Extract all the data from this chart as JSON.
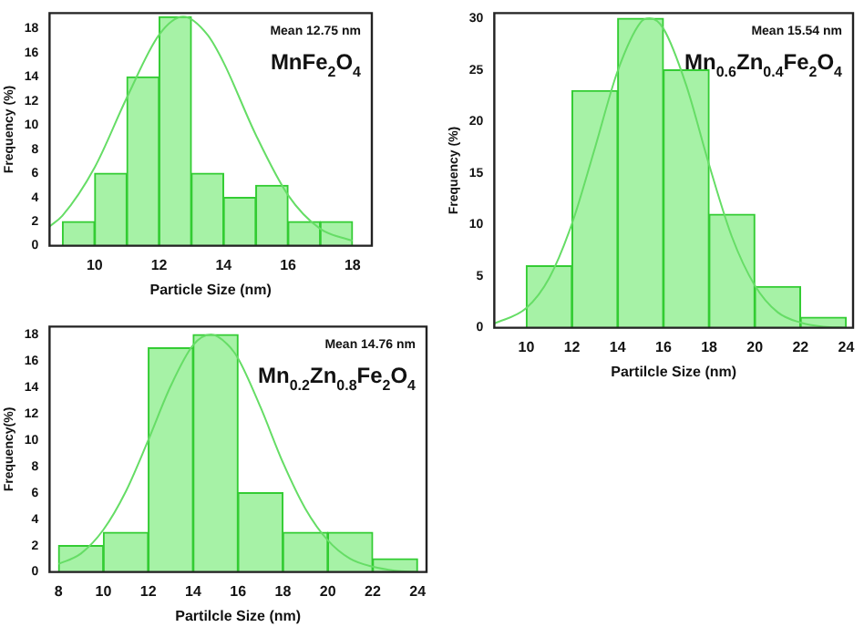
{
  "chart_data": [
    {
      "type": "histogram",
      "xlabel": "Particle Size (nm)",
      "ylabel": "Frequency (%)",
      "bins": [
        9,
        10,
        11,
        12,
        13,
        14,
        15,
        16,
        17,
        18
      ],
      "values": [
        2,
        6,
        14,
        19,
        6,
        4,
        5,
        2,
        2
      ],
      "color": "#a6f2a6",
      "xlim": [
        8.6,
        18.6
      ],
      "xticks": [
        10,
        12,
        14,
        16,
        18
      ],
      "ylim": [
        0,
        19.3
      ],
      "yticks": [
        0,
        2,
        4,
        6,
        8,
        10,
        12,
        14,
        16,
        18
      ],
      "grid": false,
      "legend": false,
      "series": [
        {
          "type": "line",
          "color": "#66dd66",
          "x": [
            8.6,
            9,
            10,
            11,
            12,
            12.75,
            13.5,
            14,
            15,
            16,
            17,
            18
          ],
          "values": [
            1.6,
            2.5,
            6.5,
            12.3,
            17.5,
            19,
            17.5,
            15.2,
            9.2,
            4.2,
            1.4,
            0.4
          ]
        }
      ],
      "annotations": [
        "Mean 12.75 nm",
        "MnFe$_{2}$O$_{4}$"
      ]
    },
    {
      "type": "histogram",
      "xlabel": "Partilcle Size (nm)",
      "ylabel": "Frequency (%)",
      "bins": [
        10,
        12,
        14,
        16,
        18,
        20,
        22,
        24
      ],
      "values": [
        6,
        23,
        30,
        25,
        11,
        4,
        1
      ],
      "color": "#a6f2a6",
      "xlim": [
        8.6,
        24.3
      ],
      "xticks": [
        10,
        12,
        14,
        16,
        18,
        20,
        22,
        24
      ],
      "ylim": [
        0,
        30.5
      ],
      "yticks": [
        0,
        5,
        10,
        15,
        20,
        25,
        30
      ],
      "grid": false,
      "legend": false,
      "series": [
        {
          "type": "line",
          "color": "#66dd66",
          "x": [
            8.6,
            10,
            11,
            12,
            13,
            14,
            15,
            15.4,
            16,
            17,
            18,
            19,
            20,
            21,
            22,
            23,
            24
          ],
          "values": [
            0.4,
            1.9,
            4.8,
            10.1,
            17.4,
            24.9,
            29.6,
            30,
            29,
            23.5,
            15.8,
            8.8,
            4.1,
            1.5,
            0.5,
            0.1,
            0
          ]
        }
      ],
      "annotations": [
        "Mean 15.54 nm",
        "Mn$_{0.6}$Zn$_{0.4}$Fe$_{2}$O$_{4}$"
      ]
    },
    {
      "type": "histogram",
      "xlabel": "Partilcle Size (nm)",
      "ylabel": "Frequency(%)",
      "bins": [
        8,
        10,
        12,
        14,
        16,
        18,
        20,
        22,
        24
      ],
      "values": [
        2,
        3,
        17,
        18,
        6,
        3,
        3,
        1
      ],
      "color": "#a6f2a6",
      "xlim": [
        7.6,
        24.4
      ],
      "xticks": [
        8,
        10,
        12,
        14,
        16,
        18,
        20,
        22,
        24
      ],
      "ylim": [
        0,
        18.6
      ],
      "yticks": [
        0,
        2,
        4,
        6,
        8,
        10,
        12,
        14,
        16,
        18
      ],
      "grid": false,
      "legend": false,
      "series": [
        {
          "type": "line",
          "color": "#66dd66",
          "x": [
            8,
            9,
            10,
            11,
            12,
            13,
            14,
            14.8,
            15.5,
            16,
            17,
            18,
            19,
            20,
            21,
            22,
            23,
            24
          ],
          "values": [
            0.6,
            1.4,
            3.2,
            6.1,
            10,
            14.1,
            17.2,
            18,
            17.3,
            16.2,
            12.5,
            8.3,
            4.8,
            2.4,
            1,
            0.4,
            0.1,
            0
          ]
        }
      ],
      "annotations": [
        "Mean 14.76 nm",
        "Mn$_{0.2}$Zn$_{0.8}$Fe$_{2}$O$_{4}$"
      ]
    }
  ]
}
